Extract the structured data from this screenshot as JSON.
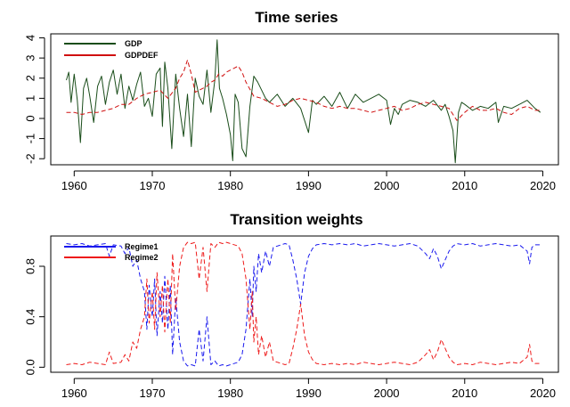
{
  "chart_data": [
    {
      "type": "line",
      "title": "Time series",
      "xlabel": "",
      "ylabel": "",
      "xlim": [
        1957,
        2022
      ],
      "ylim": [
        -2.3,
        4.2
      ],
      "xticks": [
        1960,
        1970,
        1980,
        1990,
        2000,
        2010,
        2020
      ],
      "yticks": [
        -2,
        -1,
        0,
        1,
        2,
        3,
        4
      ],
      "x_tick_labels": [
        "1960",
        "1970",
        "1980",
        "1990",
        "2000",
        "2010",
        "2020"
      ],
      "y_tick_labels": [
        "-2",
        "-1",
        "0",
        "1",
        "2",
        "3",
        "4"
      ],
      "grid": false,
      "legend": {
        "position": "top-left"
      },
      "series": [
        {
          "name": "GDP",
          "color": "#1a4d1a",
          "style": "solid",
          "x": [
            1959.0,
            1959.3,
            1959.6,
            1960.0,
            1960.4,
            1960.8,
            1961.2,
            1961.6,
            1962.0,
            1962.5,
            1963.0,
            1963.5,
            1964.0,
            1964.5,
            1965.0,
            1965.5,
            1966.0,
            1966.5,
            1967.0,
            1967.5,
            1968.0,
            1968.5,
            1969.0,
            1969.5,
            1970.0,
            1970.5,
            1971.0,
            1971.3,
            1971.6,
            1972.0,
            1972.5,
            1973.0,
            1973.5,
            1974.0,
            1974.5,
            1975.0,
            1975.5,
            1976.0,
            1976.5,
            1977.0,
            1977.5,
            1978.0,
            1978.3,
            1978.6,
            1979.0,
            1979.5,
            1980.0,
            1980.3,
            1980.6,
            1981.0,
            1981.5,
            1982.0,
            1982.5,
            1983.0,
            1983.5,
            1984.0,
            1984.5,
            1985.0,
            1986.0,
            1987.0,
            1988.0,
            1989.0,
            1990.0,
            1990.5,
            1991.0,
            1992.0,
            1993.0,
            1994.0,
            1995.0,
            1996.0,
            1997.0,
            1998.0,
            1999.0,
            2000.0,
            2000.5,
            2001.0,
            2001.5,
            2002.0,
            2003.0,
            2004.0,
            2005.0,
            2006.0,
            2007.0,
            2007.5,
            2008.0,
            2008.5,
            2008.8,
            2009.2,
            2009.6,
            2010.0,
            2011.0,
            2012.0,
            2013.0,
            2014.0,
            2014.3,
            2015.0,
            2016.0,
            2017.0,
            2018.0,
            2019.0,
            2019.7
          ],
          "values": [
            1.9,
            2.3,
            0.8,
            2.2,
            0.9,
            -1.2,
            1.5,
            2.0,
            1.1,
            -0.2,
            1.6,
            2.1,
            0.7,
            1.8,
            2.4,
            1.2,
            2.2,
            0.5,
            1.6,
            0.9,
            1.7,
            2.3,
            0.6,
            1.0,
            0.1,
            2.2,
            2.5,
            -0.4,
            2.8,
            1.5,
            -1.5,
            2.2,
            0.5,
            -0.9,
            1.2,
            -1.4,
            2.0,
            1.1,
            0.7,
            2.4,
            0.3,
            1.9,
            3.9,
            1.5,
            1.0,
            0.2,
            -0.8,
            -2.1,
            1.2,
            0.8,
            -1.5,
            -1.9,
            0.6,
            2.1,
            1.8,
            1.4,
            1.0,
            0.8,
            1.2,
            0.6,
            1.0,
            0.5,
            -0.7,
            0.9,
            0.7,
            1.1,
            0.6,
            1.3,
            0.5,
            1.2,
            0.8,
            1.0,
            1.2,
            0.9,
            -0.3,
            0.5,
            0.2,
            0.7,
            0.9,
            0.8,
            0.6,
            0.9,
            0.4,
            0.7,
            0.1,
            -0.6,
            -2.2,
            0.3,
            0.8,
            0.7,
            0.4,
            0.6,
            0.5,
            0.8,
            -0.2,
            0.6,
            0.5,
            0.7,
            0.9,
            0.5,
            0.3
          ]
        },
        {
          "name": "GDPDEF",
          "color": "#d01010",
          "style": "dashed",
          "x": [
            1959.0,
            1960.0,
            1961.0,
            1962.0,
            1963.0,
            1964.0,
            1965.0,
            1966.0,
            1967.0,
            1968.0,
            1969.0,
            1970.0,
            1971.0,
            1972.0,
            1973.0,
            1973.5,
            1974.0,
            1974.5,
            1975.0,
            1975.5,
            1976.0,
            1976.5,
            1977.0,
            1977.5,
            1978.0,
            1978.5,
            1979.0,
            1979.5,
            1980.0,
            1980.5,
            1981.0,
            1981.5,
            1982.0,
            1983.0,
            1984.0,
            1985.0,
            1986.0,
            1987.0,
            1988.0,
            1989.0,
            1990.0,
            1991.0,
            1992.0,
            1993.0,
            1994.0,
            1995.0,
            1996.0,
            1997.0,
            1998.0,
            1999.0,
            2000.0,
            2001.0,
            2002.0,
            2003.0,
            2004.0,
            2005.0,
            2006.0,
            2007.0,
            2008.0,
            2009.0,
            2010.0,
            2011.0,
            2012.0,
            2013.0,
            2014.0,
            2015.0,
            2016.0,
            2017.0,
            2018.0,
            2019.0,
            2019.7
          ],
          "values": [
            0.3,
            0.3,
            0.2,
            0.3,
            0.3,
            0.4,
            0.5,
            0.7,
            0.7,
            1.0,
            1.2,
            1.3,
            1.4,
            1.0,
            1.5,
            2.0,
            2.3,
            2.9,
            2.2,
            1.3,
            1.4,
            1.5,
            1.6,
            1.8,
            1.9,
            2.2,
            2.1,
            2.3,
            2.4,
            2.5,
            2.6,
            2.3,
            1.8,
            1.1,
            1.0,
            0.8,
            0.6,
            0.7,
            0.9,
            1.0,
            0.9,
            0.8,
            0.6,
            0.5,
            0.6,
            0.5,
            0.5,
            0.4,
            0.3,
            0.4,
            0.5,
            0.6,
            0.4,
            0.5,
            0.7,
            0.8,
            0.7,
            0.6,
            0.5,
            -0.1,
            0.3,
            0.6,
            0.4,
            0.4,
            0.5,
            0.3,
            0.2,
            0.5,
            0.6,
            0.4,
            0.4
          ]
        }
      ]
    },
    {
      "type": "line",
      "title": "Transition weights",
      "xlabel": "",
      "ylabel": "",
      "xlim": [
        1957,
        2022
      ],
      "ylim": [
        -0.04,
        1.04
      ],
      "xticks": [
        1960,
        1970,
        1980,
        1990,
        2000,
        2010,
        2020
      ],
      "yticks": [
        0.0,
        0.4,
        0.8
      ],
      "x_tick_labels": [
        "1960",
        "1970",
        "1980",
        "1990",
        "2000",
        "2010",
        "2020"
      ],
      "y_tick_labels": [
        "0.0",
        "0.4",
        "0.8"
      ],
      "grid": false,
      "legend": {
        "position": "top-left"
      },
      "series": [
        {
          "name": "Regime1",
          "color": "#1a1aee",
          "style": "dashed",
          "x": [
            1959.0,
            1960.0,
            1961.0,
            1962.0,
            1963.0,
            1964.0,
            1964.5,
            1965.0,
            1966.0,
            1966.5,
            1967.0,
            1967.5,
            1968.0,
            1968.5,
            1969.0,
            1969.3,
            1969.6,
            1970.0,
            1970.3,
            1970.6,
            1971.0,
            1971.3,
            1971.6,
            1972.0,
            1972.3,
            1972.6,
            1973.0,
            1973.5,
            1974.0,
            1974.5,
            1975.0,
            1975.5,
            1976.0,
            1976.5,
            1977.0,
            1977.5,
            1978.0,
            1978.5,
            1979.0,
            1979.5,
            1980.0,
            1981.0,
            1981.5,
            1982.0,
            1982.5,
            1982.8,
            1983.0,
            1983.3,
            1983.6,
            1984.0,
            1984.5,
            1985.0,
            1985.5,
            1986.0,
            1986.5,
            1987.0,
            1987.5,
            1988.0,
            1988.5,
            1989.0,
            1989.5,
            1990.0,
            1990.5,
            1991.0,
            1992.0,
            1993.0,
            1994.0,
            1995.0,
            1996.0,
            1997.0,
            1998.0,
            1999.0,
            2000.0,
            2001.0,
            2002.0,
            2003.0,
            2004.0,
            2005.0,
            2005.5,
            2006.0,
            2006.5,
            2007.0,
            2007.5,
            2008.0,
            2008.5,
            2009.0,
            2010.0,
            2011.0,
            2012.0,
            2013.0,
            2014.0,
            2015.0,
            2016.0,
            2017.0,
            2018.0,
            2018.3,
            2018.6,
            2019.0,
            2019.7
          ],
          "values": [
            0.98,
            0.97,
            0.98,
            0.96,
            0.97,
            0.98,
            0.88,
            0.97,
            0.96,
            0.9,
            0.95,
            0.8,
            0.85,
            0.7,
            0.6,
            0.3,
            0.65,
            0.4,
            0.7,
            0.25,
            0.6,
            0.35,
            0.72,
            0.3,
            0.65,
            0.1,
            0.55,
            0.2,
            0.05,
            0.01,
            0.02,
            0.01,
            0.3,
            0.05,
            0.4,
            0.02,
            0.05,
            0.01,
            0.02,
            0.01,
            0.02,
            0.04,
            0.1,
            0.3,
            0.7,
            0.4,
            0.8,
            0.6,
            0.9,
            0.75,
            0.92,
            0.8,
            0.95,
            0.96,
            0.97,
            0.98,
            0.97,
            0.85,
            0.7,
            0.5,
            0.75,
            0.88,
            0.94,
            0.97,
            0.98,
            0.97,
            0.98,
            0.97,
            0.98,
            0.96,
            0.97,
            0.98,
            0.97,
            0.96,
            0.97,
            0.98,
            0.96,
            0.9,
            0.86,
            0.94,
            0.88,
            0.78,
            0.85,
            0.92,
            0.96,
            0.98,
            0.97,
            0.98,
            0.96,
            0.97,
            0.98,
            0.97,
            0.96,
            0.97,
            0.92,
            0.82,
            0.95,
            0.97,
            0.97
          ]
        },
        {
          "name": "Regime2",
          "color": "#ee1a1a",
          "style": "dashed",
          "x": [
            1959.0,
            1960.0,
            1961.0,
            1962.0,
            1963.0,
            1964.0,
            1964.5,
            1965.0,
            1966.0,
            1966.5,
            1967.0,
            1967.5,
            1968.0,
            1968.5,
            1969.0,
            1969.3,
            1969.6,
            1970.0,
            1970.3,
            1970.6,
            1971.0,
            1971.3,
            1971.6,
            1972.0,
            1972.3,
            1972.6,
            1973.0,
            1973.5,
            1974.0,
            1974.5,
            1975.0,
            1975.5,
            1976.0,
            1976.5,
            1977.0,
            1977.5,
            1978.0,
            1978.5,
            1979.0,
            1979.5,
            1980.0,
            1981.0,
            1981.5,
            1982.0,
            1982.5,
            1982.8,
            1983.0,
            1983.3,
            1983.6,
            1984.0,
            1984.5,
            1985.0,
            1985.5,
            1986.0,
            1986.5,
            1987.0,
            1987.5,
            1988.0,
            1988.5,
            1989.0,
            1989.5,
            1990.0,
            1990.5,
            1991.0,
            1992.0,
            1993.0,
            1994.0,
            1995.0,
            1996.0,
            1997.0,
            1998.0,
            1999.0,
            2000.0,
            2001.0,
            2002.0,
            2003.0,
            2004.0,
            2005.0,
            2005.5,
            2006.0,
            2006.5,
            2007.0,
            2007.5,
            2008.0,
            2008.5,
            2009.0,
            2010.0,
            2011.0,
            2012.0,
            2013.0,
            2014.0,
            2015.0,
            2016.0,
            2017.0,
            2018.0,
            2018.3,
            2018.6,
            2019.0,
            2019.7
          ],
          "values": [
            0.02,
            0.03,
            0.02,
            0.04,
            0.03,
            0.02,
            0.12,
            0.03,
            0.04,
            0.1,
            0.05,
            0.2,
            0.15,
            0.3,
            0.4,
            0.7,
            0.35,
            0.6,
            0.3,
            0.75,
            0.4,
            0.65,
            0.28,
            0.7,
            0.35,
            0.9,
            0.45,
            0.8,
            0.95,
            0.99,
            0.98,
            0.99,
            0.7,
            0.95,
            0.6,
            0.98,
            0.95,
            0.99,
            0.98,
            0.99,
            0.98,
            0.96,
            0.9,
            0.7,
            0.3,
            0.6,
            0.2,
            0.4,
            0.1,
            0.25,
            0.08,
            0.2,
            0.05,
            0.04,
            0.03,
            0.02,
            0.03,
            0.15,
            0.3,
            0.5,
            0.25,
            0.12,
            0.06,
            0.03,
            0.02,
            0.03,
            0.02,
            0.03,
            0.02,
            0.04,
            0.03,
            0.02,
            0.03,
            0.04,
            0.03,
            0.02,
            0.04,
            0.1,
            0.14,
            0.06,
            0.12,
            0.22,
            0.15,
            0.08,
            0.04,
            0.02,
            0.03,
            0.02,
            0.04,
            0.03,
            0.02,
            0.03,
            0.04,
            0.03,
            0.08,
            0.18,
            0.05,
            0.03,
            0.03
          ]
        }
      ]
    }
  ]
}
